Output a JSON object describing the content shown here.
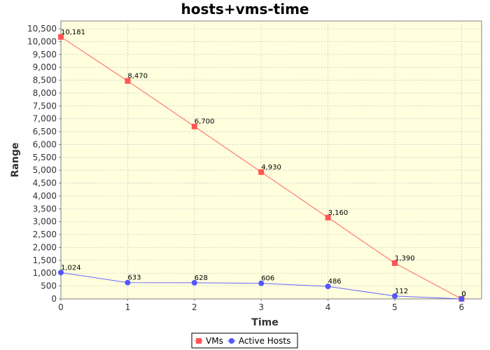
{
  "chart_data": {
    "type": "line",
    "title": "hosts+vms-time",
    "xlabel": "Time",
    "ylabel": "Range",
    "x": [
      0,
      1,
      2,
      3,
      4,
      5,
      6
    ],
    "xlim": [
      0,
      6.3
    ],
    "ylim": [
      0,
      10800
    ],
    "xticks": [
      0,
      1,
      2,
      3,
      4,
      5,
      6
    ],
    "yticks": [
      0,
      500,
      1000,
      1500,
      2000,
      2500,
      3000,
      3500,
      4000,
      4500,
      5000,
      5500,
      6000,
      6500,
      7000,
      7500,
      8000,
      8500,
      9000,
      9500,
      10000,
      10500
    ],
    "grid": true,
    "legend_position": "bottom-center",
    "plot_background": "#ffffdd",
    "series": [
      {
        "name": "VMs",
        "marker": "square",
        "color": "#ff5555",
        "line_color": "#ff6666",
        "values": [
          10181,
          8470,
          6700,
          4930,
          3160,
          1390,
          0
        ],
        "labels": [
          "10,181",
          "8,470",
          "6,700",
          "4,930",
          "3,160",
          "1,390",
          "0"
        ]
      },
      {
        "name": "Active Hosts",
        "marker": "circle",
        "color": "#5555ff",
        "line_color": "#6666ff",
        "values": [
          1024,
          633,
          628,
          606,
          486,
          112,
          0
        ],
        "labels": [
          "1,024",
          "633",
          "628",
          "606",
          "486",
          "112",
          "0"
        ]
      }
    ]
  }
}
